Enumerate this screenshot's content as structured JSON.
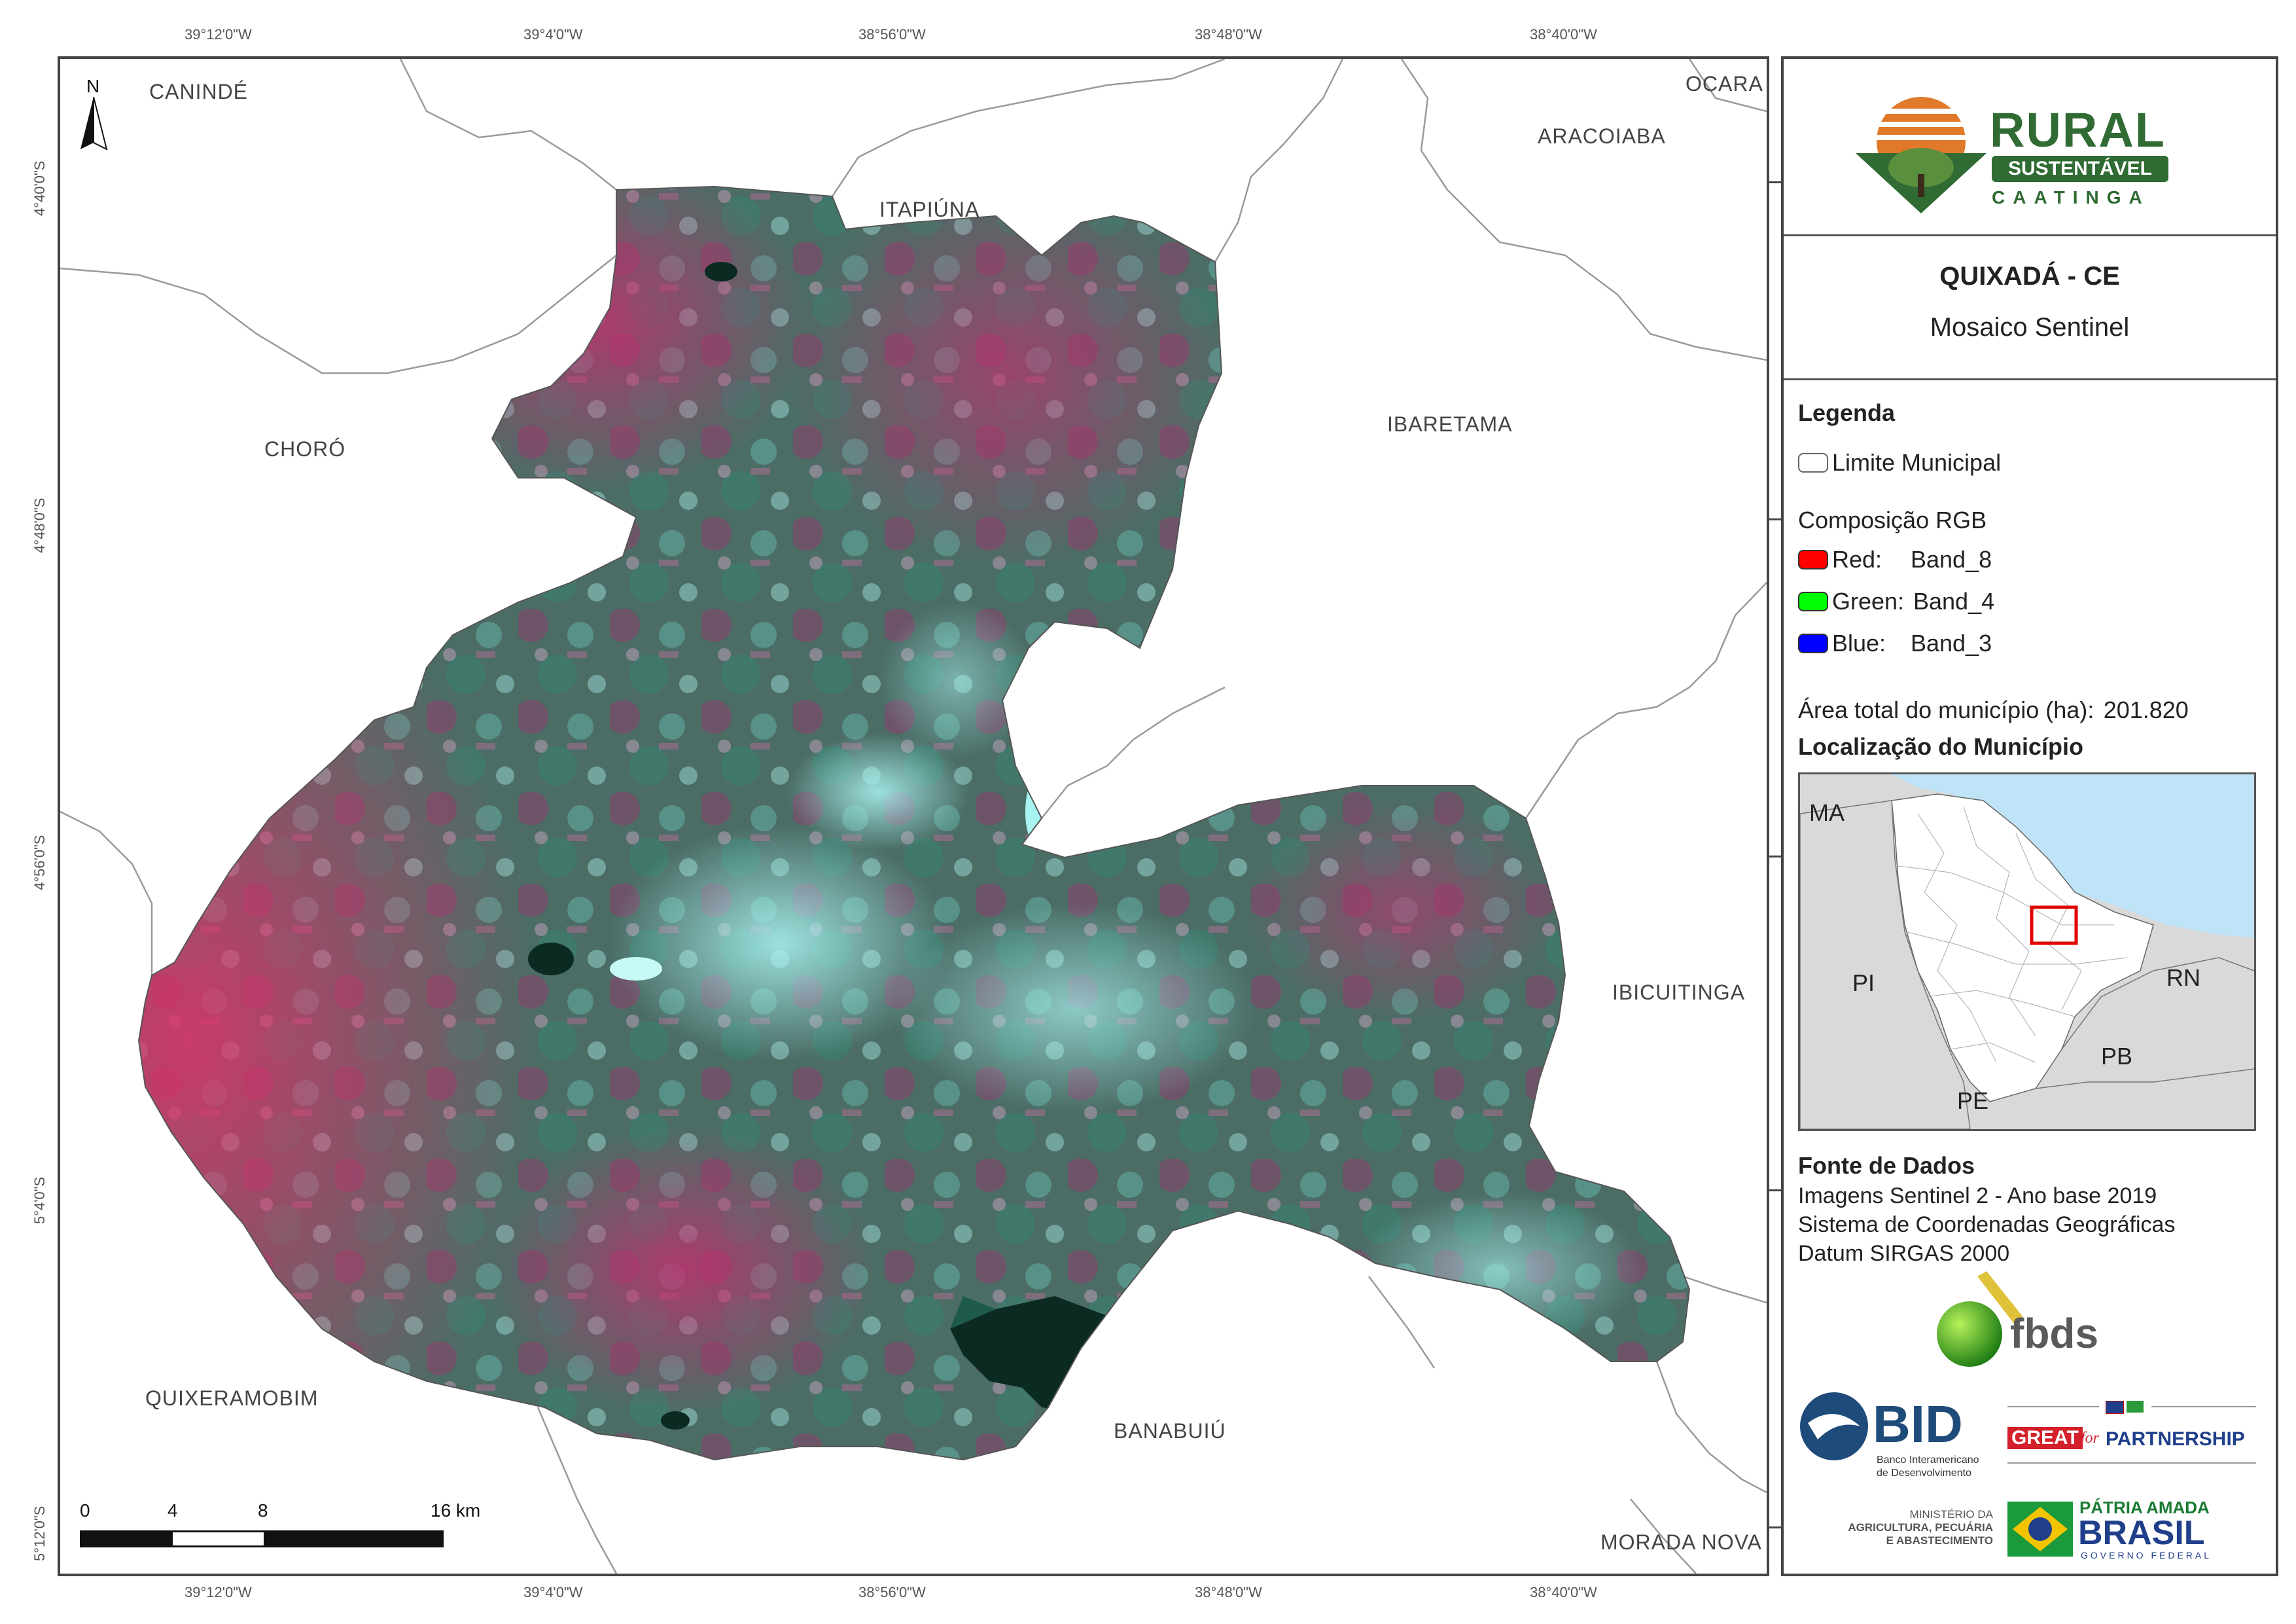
{
  "coords": {
    "top": [
      "39°12'0\"W",
      "39°4'0\"W",
      "38°56'0\"W",
      "38°48'0\"W",
      "38°40'0\"W"
    ],
    "bottom": [
      "39°12'0\"W",
      "39°4'0\"W",
      "38°56'0\"W",
      "38°48'0\"W",
      "38°40'0\"W"
    ],
    "left": [
      "4°40'0\"S",
      "4°48'0\"S",
      "4°56'0\"S",
      "5°4'0\"S",
      "5°12'0\"S"
    ]
  },
  "places": {
    "caninde": "CANINDÉ",
    "itapiuna": "ITAPIÚNA",
    "ocara": "OCARA",
    "aracoiaba": "ARACOIABA",
    "choro": "CHORÓ",
    "ibaretama": "IBARETAMA",
    "ibicuitinga": "IBICUITINGA",
    "quixeramobim": "QUIXERAMOBIM",
    "banabuiu": "BANABUIÚ",
    "morada_nova": "MORADA NOVA"
  },
  "north": "N",
  "scale": {
    "labels": [
      "0",
      "4",
      "8",
      "16 km"
    ]
  },
  "logo": {
    "rural": "RURAL",
    "sustentavel": "SUSTENTÁVEL",
    "caatinga": "CAATINGA"
  },
  "title": {
    "main": "QUIXADÁ - CE",
    "subtitle": "Mosaico Sentinel"
  },
  "legend": {
    "heading": "Legenda",
    "limit": "Limite Municipal",
    "rgb_heading": "Composição RGB",
    "bands": [
      {
        "channel": "Red:",
        "band": "Band_8",
        "color": "#ff0000"
      },
      {
        "channel": "Green:",
        "band": "Band_4",
        "color": "#00ff00"
      },
      {
        "channel": "Blue:",
        "band": "Band_3",
        "color": "#0000ff"
      }
    ],
    "area_label": "Área total do município (ha):",
    "area_value": "201.820"
  },
  "location": {
    "heading": "Localização do Município",
    "labels": {
      "ma": "MA",
      "pi": "PI",
      "rn": "RN",
      "pb": "PB",
      "pe": "PE"
    }
  },
  "source": {
    "heading": "Fonte de Dados",
    "lines": [
      "Imagens Sentinel 2 - Ano base 2019",
      "Sistema de Coordenadas Geográficas",
      "Datum SIRGAS 2000"
    ]
  },
  "sponsors": {
    "fbds": "fbds",
    "bid": "BID",
    "bid_sub1": "Banco Interamericano",
    "bid_sub2": "de Desenvolvimento",
    "great": "GREAT",
    "for": "for",
    "partnership": "PARTNERSHIP",
    "ministerio1": "MINISTÉRIO DA",
    "ministerio2": "AGRICULTURA, PECUÁRIA",
    "ministerio3": "E ABASTECIMENTO",
    "patria": "PÁTRIA AMADA",
    "brasil": "BRASIL",
    "governo": "GOVERNO FEDERAL"
  },
  "colors": {
    "imagery_magenta": "#b8306a",
    "imagery_teal": "#3f8a7c",
    "imagery_cyan": "#9ef1ee",
    "water": "#0b2a22",
    "ocean": "#bfe3f7",
    "locator_red": "#e00000",
    "logo_green": "#2f6b32",
    "logo_orange": "#e07a2a"
  }
}
